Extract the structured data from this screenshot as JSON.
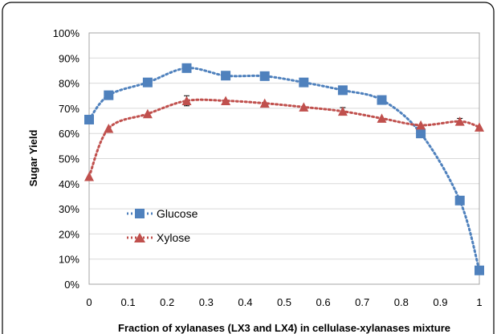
{
  "chart_data": {
    "type": "line",
    "xlabel": "Fraction of xylanases (LX3 and LX4) in cellulase-xylanases mixture",
    "ylabel": "Sugar Yield",
    "xlim": [
      0,
      1
    ],
    "ylim": [
      0,
      100
    ],
    "x_ticks": [
      "0",
      "0.1",
      "0.2",
      "0.3",
      "0.4",
      "0.5",
      "0.6",
      "0.7",
      "0.8",
      "0.9",
      "1"
    ],
    "y_ticks": [
      "0%",
      "10%",
      "20%",
      "30%",
      "40%",
      "50%",
      "60%",
      "70%",
      "80%",
      "90%",
      "100%"
    ],
    "grid": "horizontal",
    "legend_position": "lower-left",
    "series": [
      {
        "name": "Glucose",
        "color": "#4f81bd",
        "marker": "square",
        "line_style": "dotted",
        "x": [
          0,
          0.05,
          0.15,
          0.25,
          0.35,
          0.45,
          0.55,
          0.65,
          0.75,
          0.85,
          0.95,
          1.0
        ],
        "y": [
          65.5,
          75.2,
          80.3,
          86.0,
          83.0,
          82.8,
          80.3,
          77.2,
          73.3,
          60.0,
          33.3,
          5.5
        ],
        "err": [
          0,
          0,
          0,
          1.5,
          0,
          0,
          0,
          1.5,
          0,
          0,
          0,
          0
        ]
      },
      {
        "name": "Xylose",
        "color": "#c0504d",
        "marker": "triangle",
        "line_style": "dotted",
        "x": [
          0,
          0.05,
          0.15,
          0.25,
          0.35,
          0.45,
          0.55,
          0.65,
          0.75,
          0.85,
          0.95,
          1.0
        ],
        "y": [
          42.8,
          62.0,
          67.8,
          73.0,
          73.0,
          72.0,
          70.5,
          68.8,
          66.0,
          63.3,
          64.8,
          62.5
        ],
        "err": [
          0,
          0,
          0,
          2.0,
          0,
          0,
          0,
          1.5,
          0,
          0,
          1.2,
          0
        ]
      }
    ]
  }
}
